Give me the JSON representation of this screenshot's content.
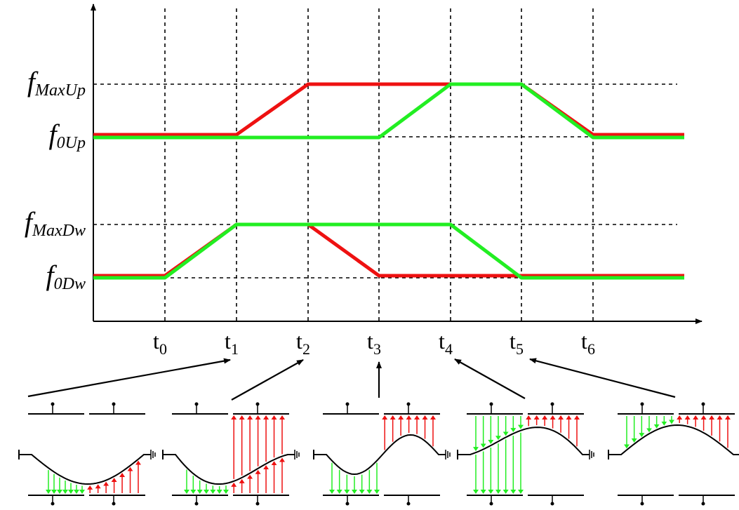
{
  "y_axis": {
    "levels": [
      {
        "base": "f",
        "sub": "MaxUp"
      },
      {
        "base": "f",
        "sub": "0Up"
      },
      {
        "base": "f",
        "sub": "MaxDw"
      },
      {
        "base": "f",
        "sub": "0Dw"
      }
    ]
  },
  "x_axis": {
    "ticks": [
      {
        "base": "t",
        "sub": "0"
      },
      {
        "base": "t",
        "sub": "1"
      },
      {
        "base": "t",
        "sub": "2"
      },
      {
        "base": "t",
        "sub": "3"
      },
      {
        "base": "t",
        "sub": "4"
      },
      {
        "base": "t",
        "sub": "5"
      },
      {
        "base": "t",
        "sub": "6"
      }
    ]
  }
}
